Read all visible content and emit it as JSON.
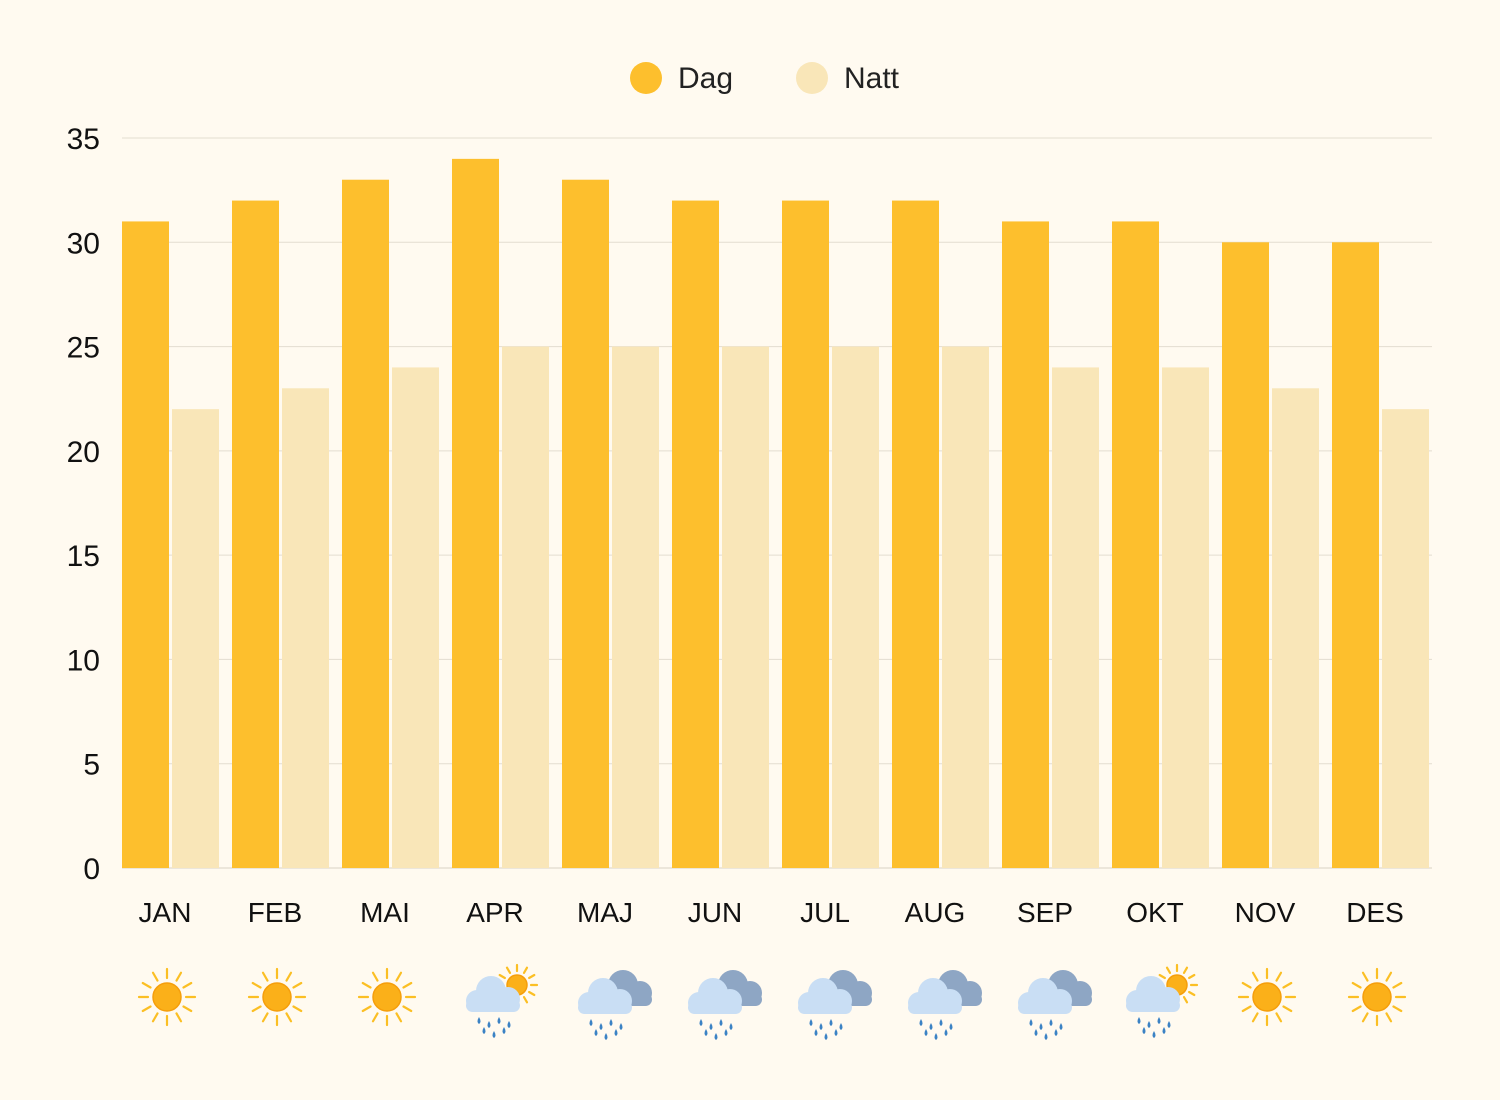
{
  "chart_data": {
    "type": "bar",
    "categories": [
      "JAN",
      "FEB",
      "MAI",
      "APR",
      "MAJ",
      "JUN",
      "JUL",
      "AUG",
      "SEP",
      "OKT",
      "NOV",
      "DES"
    ],
    "series": [
      {
        "name": "Dag",
        "values": [
          31,
          32,
          33,
          34,
          33,
          32,
          32,
          32,
          31,
          31,
          30,
          30
        ]
      },
      {
        "name": "Natt",
        "values": [
          22,
          23,
          24,
          25,
          25,
          25,
          25,
          25,
          24,
          24,
          23,
          22
        ]
      }
    ],
    "ylim": [
      0,
      35
    ],
    "yticks": [
      0,
      5,
      10,
      15,
      20,
      25,
      30,
      35
    ],
    "grid": true,
    "legend_position": "top-center",
    "colors": {
      "Dag": "#fdbf2d",
      "Natt": "#f9e6b8",
      "grid": "#e3ddd0",
      "background": "#fffaf0"
    },
    "weather_icons": [
      "sun-icon",
      "sun-icon",
      "sun-icon",
      "rain-cloud-sun-icon",
      "rain-cloud-icon",
      "rain-cloud-icon",
      "rain-cloud-icon",
      "rain-cloud-icon",
      "rain-cloud-icon",
      "rain-cloud-sun-icon",
      "sun-icon",
      "sun-icon"
    ]
  }
}
